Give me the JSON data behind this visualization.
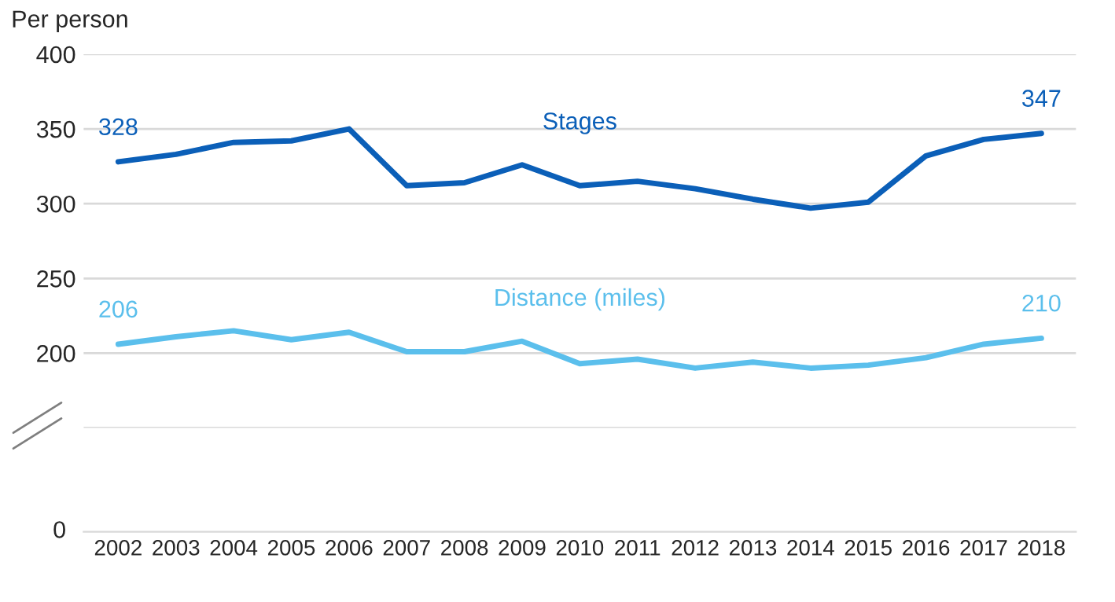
{
  "chart_data": {
    "type": "line",
    "ylabel": "Per person",
    "categories": [
      "2002",
      "2003",
      "2004",
      "2005",
      "2006",
      "2007",
      "2008",
      "2009",
      "2010",
      "2011",
      "2012",
      "2013",
      "2014",
      "2015",
      "2016",
      "2017",
      "2018"
    ],
    "series": [
      {
        "name": "Stages",
        "color": "#0b5fb8",
        "values": [
          328,
          333,
          341,
          342,
          350,
          312,
          314,
          326,
          312,
          315,
          310,
          303,
          297,
          301,
          332,
          343,
          347
        ],
        "value_labels": [
          "328",
          null,
          null,
          null,
          null,
          null,
          null,
          null,
          null,
          null,
          null,
          null,
          null,
          null,
          null,
          null,
          "347"
        ]
      },
      {
        "name": "Distance (miles)",
        "color": "#5bbfec",
        "values": [
          206,
          211,
          215,
          209,
          214,
          201,
          201,
          208,
          193,
          196,
          190,
          194,
          190,
          192,
          197,
          206,
          210
        ],
        "value_labels": [
          "206",
          null,
          null,
          null,
          null,
          null,
          null,
          null,
          null,
          null,
          null,
          null,
          null,
          null,
          null,
          null,
          "210"
        ]
      }
    ],
    "ylim": [
      150,
      400
    ],
    "yticks": [
      {
        "value": 150,
        "label": null
      },
      200,
      250,
      300,
      350,
      400
    ],
    "annotations": [
      "0"
    ],
    "grid": "y",
    "legend": false,
    "marker": "none",
    "line_style": "solid"
  }
}
